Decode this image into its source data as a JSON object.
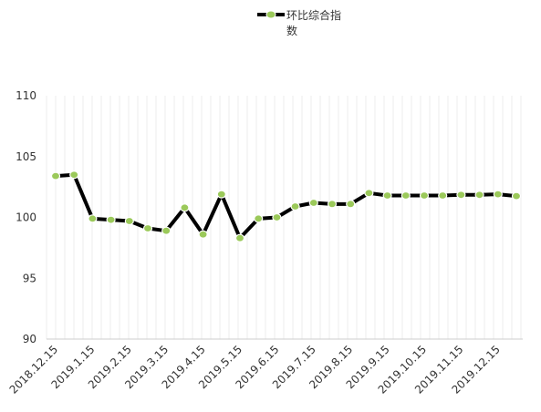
{
  "chart_data": {
    "type": "line",
    "title": "",
    "xlabel": "",
    "ylabel": "",
    "ylim": [
      90,
      110
    ],
    "y_ticks": [
      "90",
      "95",
      "100",
      "105",
      "110"
    ],
    "x_tick_labels": [
      "2018.12.15",
      "2019.1.15",
      "2019.2.15",
      "2019.3.15",
      "2019.4.15",
      "2019.5.15",
      "2019.6.15",
      "2019.7.15",
      "2019.8.15",
      "2019.9.15",
      "2019.10.15",
      "2019.11.15",
      "2019.12.15"
    ],
    "legend_position": "top-center",
    "grid": {
      "vertical": true,
      "horizontal": false
    },
    "line_color": "#000000",
    "marker_color": "#9bc95a",
    "series": [
      {
        "name": "环比综合指数",
        "values": [
          103.4,
          103.5,
          99.9,
          99.8,
          99.7,
          99.1,
          98.9,
          100.8,
          98.6,
          101.9,
          98.3,
          99.9,
          100.0,
          100.9,
          101.2,
          101.1,
          101.1,
          102.0,
          101.8,
          101.8,
          101.8,
          101.8,
          101.85,
          101.85,
          101.9,
          101.75
        ]
      }
    ]
  }
}
